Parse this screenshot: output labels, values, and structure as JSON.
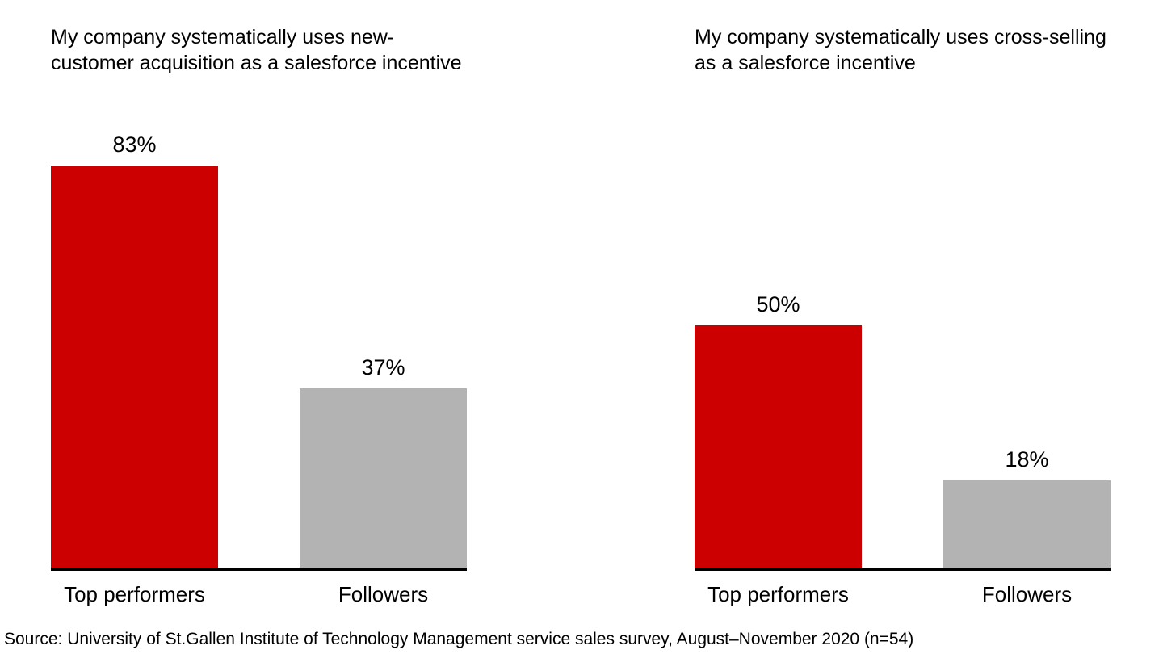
{
  "colors": {
    "top_performers_bar": "#cc0000",
    "followers_bar": "#b3b3b3",
    "axis": "#000000",
    "text": "#000000",
    "background": "#ffffff"
  },
  "chart_data": [
    {
      "type": "bar",
      "title": "My company systematically uses new-customer acquisition as a salesforce incentive",
      "categories": [
        "Top performers",
        "Followers"
      ],
      "values": [
        83,
        37
      ],
      "value_labels": [
        "83%",
        "37%"
      ],
      "bar_colors": [
        "#cc0000",
        "#b3b3b3"
      ],
      "xlabel": "",
      "ylabel": "",
      "ylim": [
        0,
        100
      ],
      "grid": false,
      "legend_position": "none",
      "y_axis_visible": false
    },
    {
      "type": "bar",
      "title": "My company systematically uses cross-selling as a salesforce incentive",
      "categories": [
        "Top performers",
        "Followers"
      ],
      "values": [
        50,
        18
      ],
      "value_labels": [
        "50%",
        "18%"
      ],
      "bar_colors": [
        "#cc0000",
        "#b3b3b3"
      ],
      "xlabel": "",
      "ylabel": "",
      "ylim": [
        0,
        100
      ],
      "grid": false,
      "legend_position": "none",
      "y_axis_visible": false
    }
  ],
  "source": "Source: University of St.Gallen Institute of Technology Management service sales survey, August–November 2020 (n=54)"
}
